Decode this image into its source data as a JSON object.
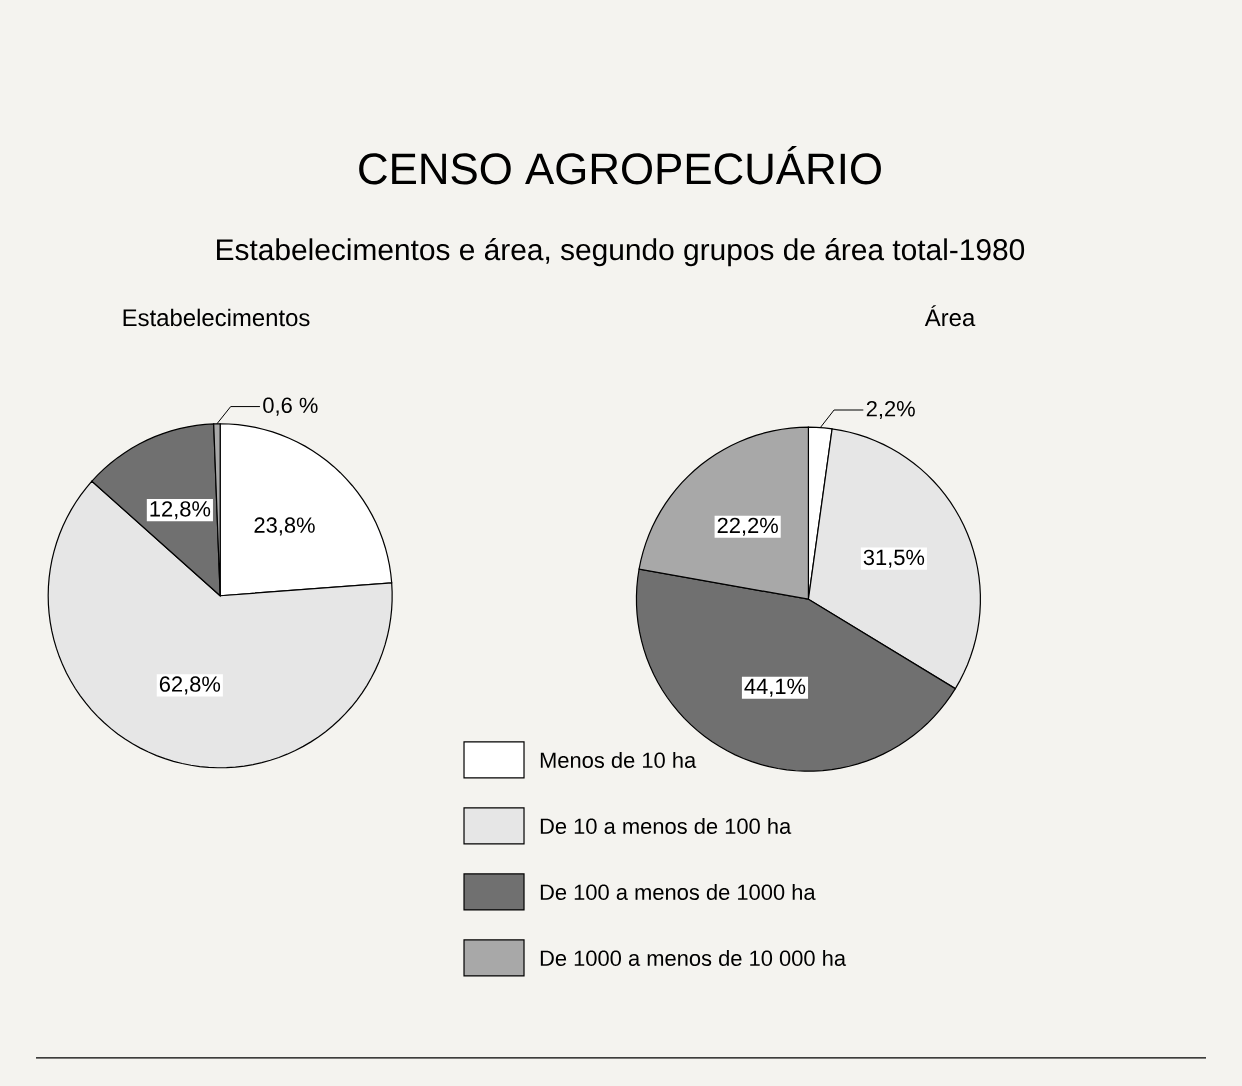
{
  "chart_data": [
    {
      "type": "pie",
      "title": "Estabelecimentos",
      "annotations": [
        "CENSO AGROPECUÁRIO",
        "Estabelecimentos e área, segundo grupos de área total-1980"
      ],
      "categories": [
        "Menos de 10 ha",
        "De 10 a menos de 100 ha",
        "De 100 a menos de 1000 ha",
        "De 1000 a menos de 10 000 ha"
      ],
      "values": [
        23.8,
        62.8,
        12.8,
        0.6
      ],
      "value_labels": [
        "23,8%",
        "62,8%",
        "12,8%",
        "0,6 %"
      ],
      "colors": [
        "#ffffff",
        "#e6e6e6",
        "#707070",
        "#a8a8a8"
      ],
      "legend": "bottom"
    },
    {
      "type": "pie",
      "title": "Área",
      "categories": [
        null,
        null,
        null,
        null
      ],
      "values": [
        2.2,
        31.5,
        44.1,
        22.2
      ],
      "value_labels": [
        "2,2%",
        "31,5%",
        "44,1%",
        "22,2%"
      ],
      "colors": [
        "#ffffff",
        "#e6e6e6",
        "#707070",
        "#a8a8a8"
      ]
    }
  ]
}
